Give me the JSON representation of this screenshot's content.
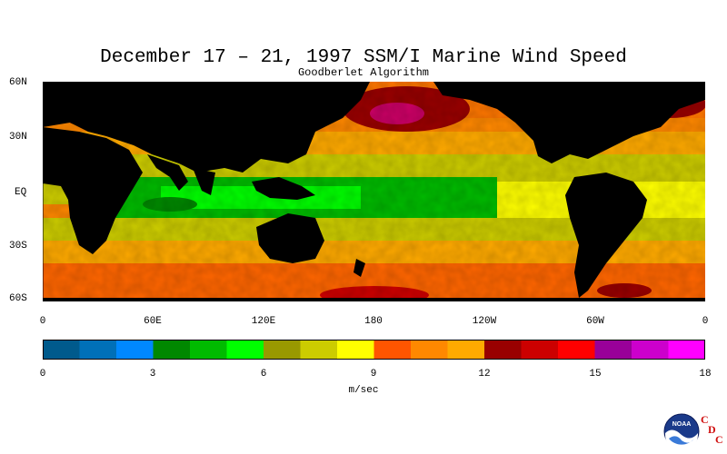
{
  "title": "December 17 – 21, 1997 SSM/I Marine Wind Speed",
  "subtitle": "Goodberlet Algorithm",
  "lat_labels": [
    "60N",
    "30N",
    "EQ",
    "30S",
    "60S"
  ],
  "lon_labels": [
    "0",
    "60E",
    "120E",
    "180",
    "120W",
    "60W",
    "0"
  ],
  "colorbar": {
    "colors": [
      "#005a8c",
      "#0070b8",
      "#0088ff",
      "#008800",
      "#00bb00",
      "#00ff00",
      "#999900",
      "#cccc00",
      "#ffff00",
      "#ff5500",
      "#ff8800",
      "#ffaa00",
      "#990000",
      "#cc0000",
      "#ff0000",
      "#990099",
      "#cc00cc",
      "#ff00ff"
    ],
    "tick_labels": [
      "0",
      "3",
      "6",
      "9",
      "12",
      "15",
      "18"
    ],
    "units": "m/sec",
    "range": [
      0,
      18
    ]
  },
  "logo": {
    "name": "NOAA",
    "cdc_letters": [
      "C",
      "D",
      "C"
    ]
  }
}
